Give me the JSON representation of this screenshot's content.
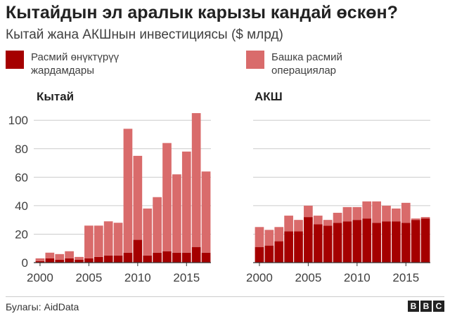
{
  "header": {
    "title": "Кытайдын эл аралык карызы кандай өскөн?",
    "subtitle": "Кытай жана АКШнын инвестициясы ($ млрд)"
  },
  "legend": {
    "official_aid": {
      "label_line1": "Расмий өнүктүрүү",
      "label_line2": "жардамдары",
      "color": "#a50000"
    },
    "other_official": {
      "label_line1": "Башка расмий",
      "label_line2": "операциялар",
      "color": "#d96b6b"
    }
  },
  "footer": {
    "source": "Булагы: AidData",
    "logo_letters": [
      "B",
      "B",
      "C"
    ]
  },
  "chart_data": [
    {
      "type": "bar",
      "stacked": true,
      "title": "Кытай",
      "x": [
        2000,
        2001,
        2002,
        2003,
        2004,
        2005,
        2006,
        2007,
        2008,
        2009,
        2010,
        2011,
        2012,
        2013,
        2014,
        2015,
        2016,
        2017
      ],
      "series": [
        {
          "name": "Расмий өнүктүрүү жардамдары",
          "values": [
            1,
            3,
            2,
            3,
            2,
            3,
            4,
            5,
            5,
            7,
            16,
            5,
            7,
            8,
            7,
            7,
            11,
            7
          ]
        },
        {
          "name": "Башка расмий операциялар",
          "values": [
            2,
            4,
            4,
            5,
            2,
            23,
            22,
            24,
            23,
            87,
            59,
            33,
            39,
            76,
            55,
            71,
            94,
            57
          ]
        }
      ],
      "xticks": [
        2000,
        2005,
        2010,
        2015
      ],
      "yticks": [
        0,
        20,
        40,
        60,
        80,
        100
      ],
      "ylim": [
        0,
        108
      ],
      "grid": true
    },
    {
      "type": "bar",
      "stacked": true,
      "title": "АКШ",
      "x": [
        2000,
        2001,
        2002,
        2003,
        2004,
        2005,
        2006,
        2007,
        2008,
        2009,
        2010,
        2011,
        2012,
        2013,
        2014,
        2015,
        2016,
        2017
      ],
      "series": [
        {
          "name": "Расмий өнүктүрүү жардамдары",
          "values": [
            11,
            12,
            15,
            22,
            22,
            32,
            27,
            26,
            28,
            29,
            30,
            31,
            28,
            29,
            29,
            28,
            30,
            31
          ]
        },
        {
          "name": "Башка расмий операциялар",
          "values": [
            14,
            11,
            10,
            11,
            8,
            8,
            6,
            4,
            7,
            10,
            9,
            12,
            15,
            11,
            9,
            14,
            1,
            1
          ]
        }
      ],
      "xticks": [
        2000,
        2005,
        2010,
        2015
      ],
      "yticks": [
        0,
        20,
        40,
        60,
        80,
        100
      ],
      "ylim": [
        0,
        108
      ],
      "grid": true
    }
  ]
}
